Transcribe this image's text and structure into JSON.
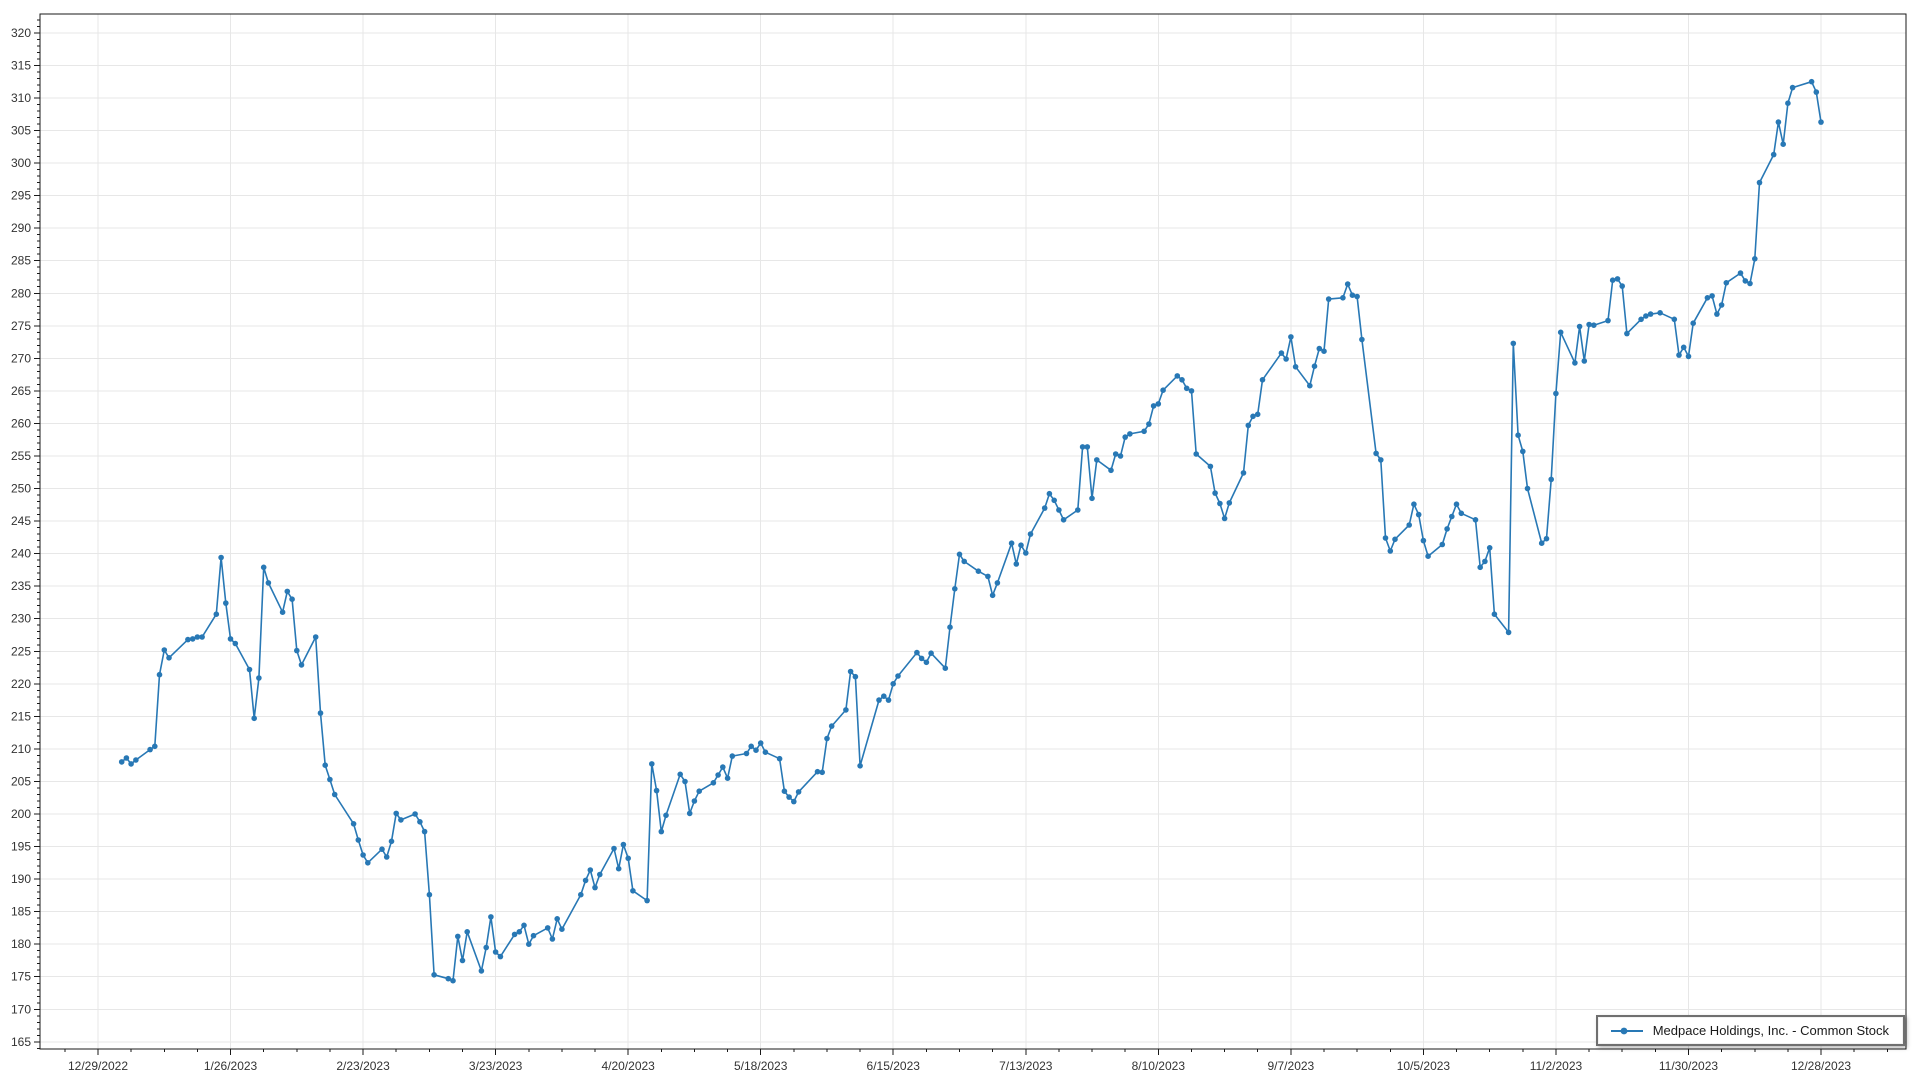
{
  "window": {
    "background": "#ffffff"
  },
  "legend": {
    "label": "Medpace Holdings, Inc. - Common Stock"
  },
  "chart_data": {
    "type": "line",
    "title": "",
    "xlabel": "",
    "ylabel": "",
    "series_name": "Medpace Holdings, Inc. - Common Stock",
    "line_color": "#2878b5",
    "marker": "circle",
    "grid": true,
    "grid_color": "#e7e7e7",
    "axis_color": "#1a1a1a",
    "legend_position": "bottom-right",
    "ylim": [
      163.9,
      322.9
    ],
    "y_tick_step": 5,
    "y_minor_tick_step": 1,
    "y_ticks": [
      165,
      170,
      175,
      180,
      185,
      190,
      195,
      200,
      205,
      210,
      215,
      220,
      225,
      230,
      235,
      240,
      245,
      250,
      255,
      260,
      265,
      270,
      275,
      280,
      285,
      290,
      295,
      300,
      305,
      310,
      315,
      320
    ],
    "x_tick_labels": [
      "12/29/2022",
      "1/26/2023",
      "2/23/2023",
      "3/23/2023",
      "4/20/2023",
      "5/18/2023",
      "6/15/2023",
      "7/13/2023",
      "8/10/2023",
      "9/7/2023",
      "10/5/2023",
      "11/2/2023",
      "11/30/2023",
      "12/28/2023"
    ],
    "x_tick_interval_days": 28,
    "x_minor_tick_days": 7,
    "points": [
      [
        "1/3/2023",
        208.0
      ],
      [
        "1/4/2023",
        208.6
      ],
      [
        "1/5/2023",
        207.7
      ],
      [
        "1/6/2023",
        208.3
      ],
      [
        "1/9/2023",
        209.9
      ],
      [
        "1/10/2023",
        210.4
      ],
      [
        "1/11/2023",
        221.4
      ],
      [
        "1/12/2023",
        225.2
      ],
      [
        "1/13/2023",
        224.0
      ],
      [
        "1/17/2023",
        226.8
      ],
      [
        "1/18/2023",
        226.9
      ],
      [
        "1/19/2023",
        227.2
      ],
      [
        "1/20/2023",
        227.2
      ],
      [
        "1/23/2023",
        230.7
      ],
      [
        "1/24/2023",
        239.4
      ],
      [
        "1/25/2023",
        232.4
      ],
      [
        "1/26/2023",
        226.9
      ],
      [
        "1/27/2023",
        226.2
      ],
      [
        "1/30/2023",
        222.2
      ],
      [
        "1/31/2023",
        214.7
      ],
      [
        "2/1/2023",
        220.9
      ],
      [
        "2/2/2023",
        237.9
      ],
      [
        "2/3/2023",
        235.5
      ],
      [
        "2/6/2023",
        231.0
      ],
      [
        "2/7/2023",
        234.2
      ],
      [
        "2/8/2023",
        233.0
      ],
      [
        "2/9/2023",
        225.1
      ],
      [
        "2/10/2023",
        222.9
      ],
      [
        "2/13/2023",
        227.2
      ],
      [
        "2/14/2023",
        215.5
      ],
      [
        "2/15/2023",
        207.5
      ],
      [
        "2/16/2023",
        205.3
      ],
      [
        "2/17/2023",
        203.0
      ],
      [
        "2/21/2023",
        198.5
      ],
      [
        "2/22/2023",
        196.0
      ],
      [
        "2/23/2023",
        193.7
      ],
      [
        "2/24/2023",
        192.5
      ],
      [
        "2/27/2023",
        194.6
      ],
      [
        "2/28/2023",
        193.4
      ],
      [
        "3/1/2023",
        195.8
      ],
      [
        "3/2/2023",
        200.1
      ],
      [
        "3/3/2023",
        199.1
      ],
      [
        "3/6/2023",
        200.0
      ],
      [
        "3/7/2023",
        198.8
      ],
      [
        "3/8/2023",
        197.3
      ],
      [
        "3/9/2023",
        187.6
      ],
      [
        "3/10/2023",
        175.3
      ],
      [
        "3/13/2023",
        174.7
      ],
      [
        "3/14/2023",
        174.4
      ],
      [
        "3/15/2023",
        181.2
      ],
      [
        "3/16/2023",
        177.5
      ],
      [
        "3/17/2023",
        181.9
      ],
      [
        "3/20/2023",
        175.9
      ],
      [
        "3/21/2023",
        179.5
      ],
      [
        "3/22/2023",
        184.2
      ],
      [
        "3/23/2023",
        178.8
      ],
      [
        "3/24/2023",
        178.1
      ],
      [
        "3/27/2023",
        181.5
      ],
      [
        "3/28/2023",
        181.9
      ],
      [
        "3/29/2023",
        182.9
      ],
      [
        "3/30/2023",
        180.0
      ],
      [
        "3/31/2023",
        181.3
      ],
      [
        "4/3/2023",
        182.5
      ],
      [
        "4/4/2023",
        180.8
      ],
      [
        "4/5/2023",
        183.9
      ],
      [
        "4/6/2023",
        182.3
      ],
      [
        "4/10/2023",
        187.6
      ],
      [
        "4/11/2023",
        189.8
      ],
      [
        "4/12/2023",
        191.4
      ],
      [
        "4/13/2023",
        188.7
      ],
      [
        "4/14/2023",
        190.7
      ],
      [
        "4/17/2023",
        194.7
      ],
      [
        "4/18/2023",
        191.6
      ],
      [
        "4/19/2023",
        195.3
      ],
      [
        "4/20/2023",
        193.2
      ],
      [
        "4/21/2023",
        188.2
      ],
      [
        "4/24/2023",
        186.7
      ],
      [
        "4/25/2023",
        207.7
      ],
      [
        "4/26/2023",
        203.6
      ],
      [
        "4/27/2023",
        197.3
      ],
      [
        "4/28/2023",
        199.8
      ],
      [
        "5/1/2023",
        206.1
      ],
      [
        "5/2/2023",
        205.0
      ],
      [
        "5/3/2023",
        200.1
      ],
      [
        "5/4/2023",
        202.0
      ],
      [
        "5/5/2023",
        203.5
      ],
      [
        "5/8/2023",
        204.8
      ],
      [
        "5/9/2023",
        206.0
      ],
      [
        "5/10/2023",
        207.2
      ],
      [
        "5/11/2023",
        205.5
      ],
      [
        "5/12/2023",
        208.9
      ],
      [
        "5/15/2023",
        209.3
      ],
      [
        "5/16/2023",
        210.4
      ],
      [
        "5/17/2023",
        209.8
      ],
      [
        "5/18/2023",
        210.9
      ],
      [
        "5/19/2023",
        209.5
      ],
      [
        "5/22/2023",
        208.5
      ],
      [
        "5/23/2023",
        203.5
      ],
      [
        "5/24/2023",
        202.6
      ],
      [
        "5/25/2023",
        201.9
      ],
      [
        "5/26/2023",
        203.4
      ],
      [
        "5/30/2023",
        206.5
      ],
      [
        "5/31/2023",
        206.4
      ],
      [
        "6/1/2023",
        211.6
      ],
      [
        "6/2/2023",
        213.5
      ],
      [
        "6/5/2023",
        216.0
      ],
      [
        "6/6/2023",
        221.9
      ],
      [
        "6/7/2023",
        221.1
      ],
      [
        "6/8/2023",
        207.4
      ],
      [
        "6/12/2023",
        217.5
      ],
      [
        "6/13/2023",
        218.1
      ],
      [
        "6/14/2023",
        217.5
      ],
      [
        "6/15/2023",
        220.0
      ],
      [
        "6/16/2023",
        221.2
      ],
      [
        "6/20/2023",
        224.8
      ],
      [
        "6/21/2023",
        223.9
      ],
      [
        "6/22/2023",
        223.3
      ],
      [
        "6/23/2023",
        224.7
      ],
      [
        "6/26/2023",
        222.4
      ],
      [
        "6/27/2023",
        228.7
      ],
      [
        "6/28/2023",
        234.6
      ],
      [
        "6/29/2023",
        239.9
      ],
      [
        "6/30/2023",
        238.8
      ],
      [
        "7/3/2023",
        237.3
      ],
      [
        "7/5/2023",
        236.5
      ],
      [
        "7/6/2023",
        233.6
      ],
      [
        "7/7/2023",
        235.5
      ],
      [
        "7/10/2023",
        241.6
      ],
      [
        "7/11/2023",
        238.4
      ],
      [
        "7/12/2023",
        241.3
      ],
      [
        "7/13/2023",
        240.1
      ],
      [
        "7/14/2023",
        243.0
      ],
      [
        "7/17/2023",
        247.0
      ],
      [
        "7/18/2023",
        249.2
      ],
      [
        "7/19/2023",
        248.2
      ],
      [
        "7/20/2023",
        246.7
      ],
      [
        "7/21/2023",
        245.2
      ],
      [
        "7/24/2023",
        246.7
      ],
      [
        "7/25/2023",
        256.4
      ],
      [
        "7/26/2023",
        256.4
      ],
      [
        "7/27/2023",
        248.5
      ],
      [
        "7/28/2023",
        254.4
      ],
      [
        "7/31/2023",
        252.8
      ],
      [
        "8/1/2023",
        255.3
      ],
      [
        "8/2/2023",
        255.0
      ],
      [
        "8/3/2023",
        257.9
      ],
      [
        "8/4/2023",
        258.4
      ],
      [
        "8/7/2023",
        258.8
      ],
      [
        "8/8/2023",
        259.9
      ],
      [
        "8/9/2023",
        262.7
      ],
      [
        "8/10/2023",
        263.0
      ],
      [
        "8/11/2023",
        265.1
      ],
      [
        "8/14/2023",
        267.3
      ],
      [
        "8/15/2023",
        266.7
      ],
      [
        "8/16/2023",
        265.4
      ],
      [
        "8/17/2023",
        265.0
      ],
      [
        "8/18/2023",
        255.3
      ],
      [
        "8/21/2023",
        253.4
      ],
      [
        "8/22/2023",
        249.3
      ],
      [
        "8/23/2023",
        247.7
      ],
      [
        "8/24/2023",
        245.4
      ],
      [
        "8/25/2023",
        247.8
      ],
      [
        "8/28/2023",
        252.4
      ],
      [
        "8/29/2023",
        259.7
      ],
      [
        "8/30/2023",
        261.1
      ],
      [
        "8/31/2023",
        261.4
      ],
      [
        "9/1/2023",
        266.7
      ],
      [
        "9/5/2023",
        270.8
      ],
      [
        "9/6/2023",
        269.9
      ],
      [
        "9/7/2023",
        273.3
      ],
      [
        "9/8/2023",
        268.7
      ],
      [
        "9/11/2023",
        265.8
      ],
      [
        "9/12/2023",
        268.8
      ],
      [
        "9/13/2023",
        271.5
      ],
      [
        "9/14/2023",
        271.1
      ],
      [
        "9/15/2023",
        279.1
      ],
      [
        "9/18/2023",
        279.3
      ],
      [
        "9/19/2023",
        281.4
      ],
      [
        "9/20/2023",
        279.7
      ],
      [
        "9/21/2023",
        279.5
      ],
      [
        "9/22/2023",
        272.9
      ],
      [
        "9/25/2023",
        255.4
      ],
      [
        "9/26/2023",
        254.4
      ],
      [
        "9/27/2023",
        242.4
      ],
      [
        "9/28/2023",
        240.4
      ],
      [
        "9/29/2023",
        242.2
      ],
      [
        "10/2/2023",
        244.4
      ],
      [
        "10/3/2023",
        247.6
      ],
      [
        "10/4/2023",
        246.0
      ],
      [
        "10/5/2023",
        242.0
      ],
      [
        "10/6/2023",
        239.6
      ],
      [
        "10/9/2023",
        241.4
      ],
      [
        "10/10/2023",
        243.8
      ],
      [
        "10/11/2023",
        245.7
      ],
      [
        "10/12/2023",
        247.6
      ],
      [
        "10/13/2023",
        246.2
      ],
      [
        "10/16/2023",
        245.2
      ],
      [
        "10/17/2023",
        237.9
      ],
      [
        "10/18/2023",
        238.8
      ],
      [
        "10/19/2023",
        240.9
      ],
      [
        "10/20/2023",
        230.7
      ],
      [
        "10/23/2023",
        227.9
      ],
      [
        "10/24/2023",
        272.3
      ],
      [
        "10/25/2023",
        258.2
      ],
      [
        "10/26/2023",
        255.7
      ],
      [
        "10/27/2023",
        250.0
      ],
      [
        "10/30/2023",
        241.6
      ],
      [
        "10/31/2023",
        242.3
      ],
      [
        "11/1/2023",
        251.4
      ],
      [
        "11/2/2023",
        264.6
      ],
      [
        "11/3/2023",
        274.0
      ],
      [
        "11/6/2023",
        269.3
      ],
      [
        "11/7/2023",
        274.9
      ],
      [
        "11/8/2023",
        269.6
      ],
      [
        "11/9/2023",
        275.2
      ],
      [
        "11/10/2023",
        275.1
      ],
      [
        "11/13/2023",
        275.8
      ],
      [
        "11/14/2023",
        282.0
      ],
      [
        "11/15/2023",
        282.2
      ],
      [
        "11/16/2023",
        281.1
      ],
      [
        "11/17/2023",
        273.8
      ],
      [
        "11/20/2023",
        276.0
      ],
      [
        "11/21/2023",
        276.5
      ],
      [
        "11/22/2023",
        276.8
      ],
      [
        "11/24/2023",
        277.0
      ],
      [
        "11/27/2023",
        276.0
      ],
      [
        "11/28/2023",
        270.5
      ],
      [
        "11/29/2023",
        271.7
      ],
      [
        "11/30/2023",
        270.3
      ],
      [
        "12/1/2023",
        275.4
      ],
      [
        "12/4/2023",
        279.3
      ],
      [
        "12/5/2023",
        279.6
      ],
      [
        "12/6/2023",
        276.8
      ],
      [
        "12/7/2023",
        278.2
      ],
      [
        "12/8/2023",
        281.6
      ],
      [
        "12/11/2023",
        283.1
      ],
      [
        "12/12/2023",
        281.9
      ],
      [
        "12/13/2023",
        281.5
      ],
      [
        "12/14/2023",
        285.3
      ],
      [
        "12/15/2023",
        297.0
      ],
      [
        "12/18/2023",
        301.3
      ],
      [
        "12/19/2023",
        306.3
      ],
      [
        "12/20/2023",
        302.9
      ],
      [
        "12/21/2023",
        309.2
      ],
      [
        "12/22/2023",
        311.6
      ],
      [
        "12/26/2023",
        312.5
      ],
      [
        "12/27/2023",
        310.9
      ],
      [
        "12/28/2023",
        306.3
      ]
    ]
  }
}
